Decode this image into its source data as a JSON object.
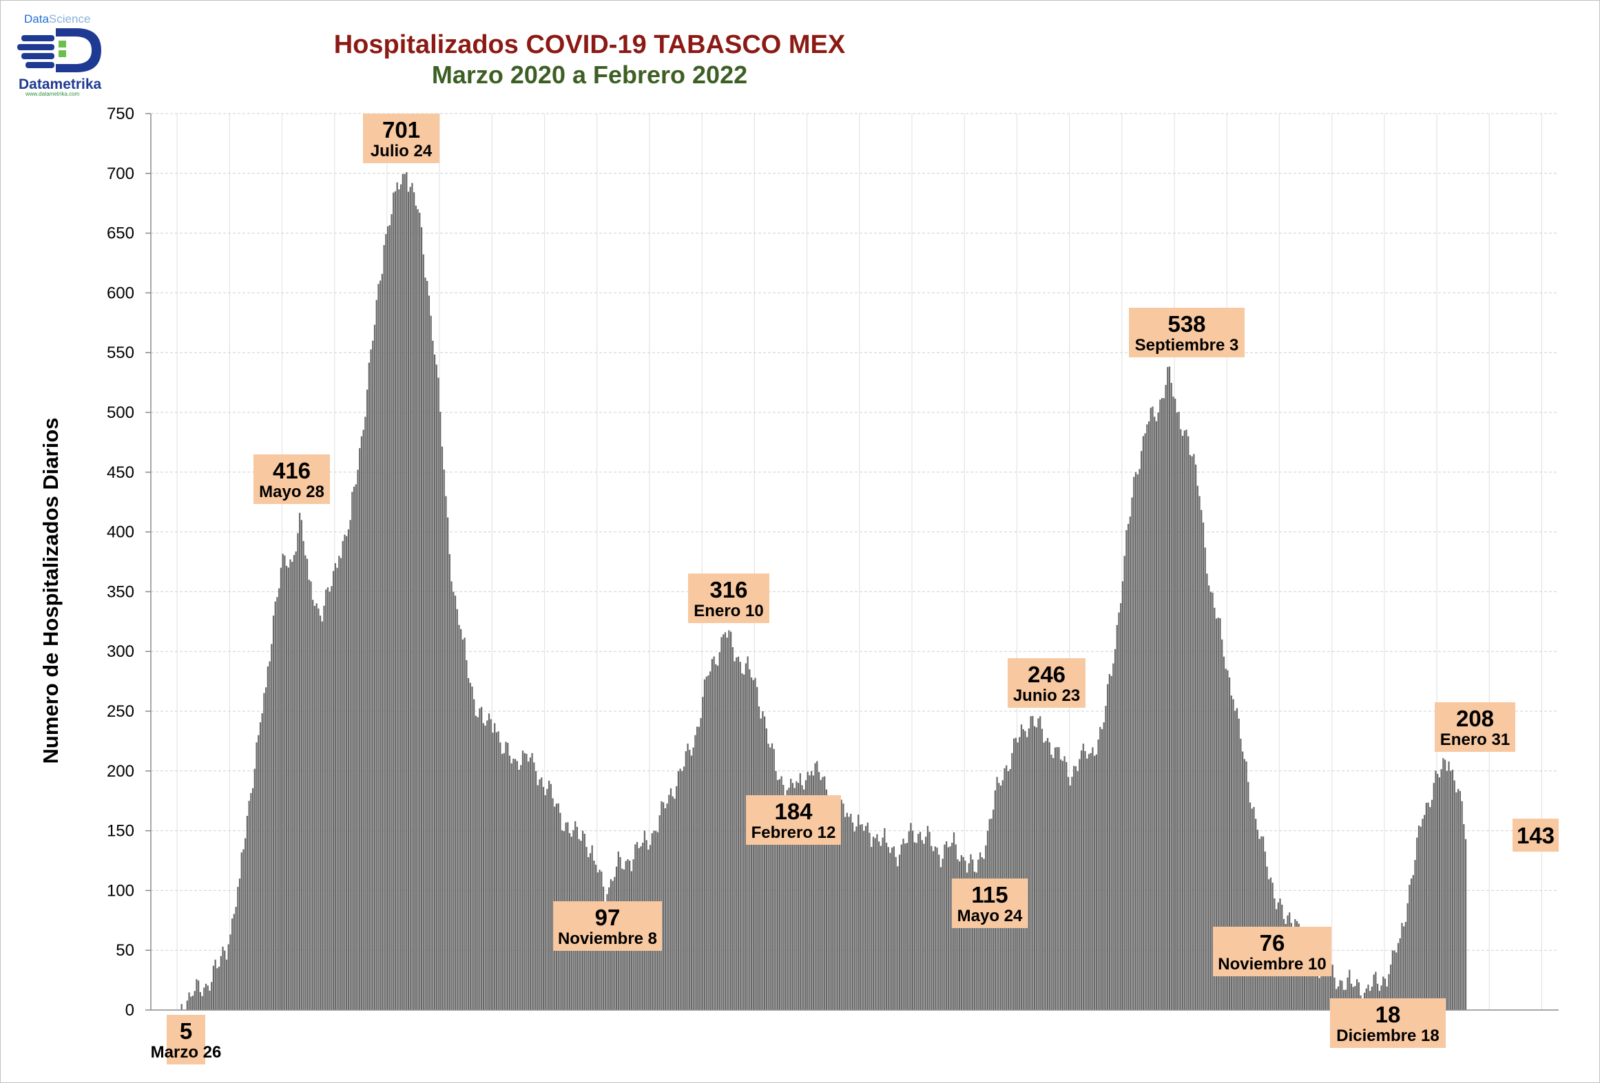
{
  "chart_data": {
    "type": "bar",
    "title": "Hospitalizados COVID-19 TABASCO MEX",
    "subtitle": "Marzo 2020 a Febrero 2022",
    "ylabel": "Numero de Hospitalizados Diarios",
    "xlabel": "",
    "ylim": [
      0,
      750
    ],
    "yticks": [
      0,
      50,
      100,
      150,
      200,
      250,
      300,
      350,
      400,
      450,
      500,
      550,
      600,
      650,
      700,
      750
    ],
    "grid": true,
    "colors": {
      "bar": "#686868",
      "title": "#8b1a14",
      "subtitle": "#3d5f24",
      "annotation_fill": "#f8c8a0"
    },
    "series": [
      {
        "knots": [
          [
            "2020-03-26",
            5
          ],
          [
            "2020-04-01",
            12
          ],
          [
            "2020-04-08",
            22
          ],
          [
            "2020-04-14",
            35
          ],
          [
            "2020-04-20",
            55
          ],
          [
            "2020-04-26",
            110
          ],
          [
            "2020-05-01",
            175
          ],
          [
            "2020-05-06",
            230
          ],
          [
            "2020-05-10",
            270
          ],
          [
            "2020-05-14",
            330
          ],
          [
            "2020-05-18",
            370
          ],
          [
            "2020-05-24",
            375
          ],
          [
            "2020-05-28",
            416
          ],
          [
            "2020-06-02",
            360
          ],
          [
            "2020-06-08",
            330
          ],
          [
            "2020-06-13",
            350
          ],
          [
            "2020-06-18",
            380
          ],
          [
            "2020-06-24",
            410
          ],
          [
            "2020-06-30",
            480
          ],
          [
            "2020-07-06",
            560
          ],
          [
            "2020-07-12",
            640
          ],
          [
            "2020-07-18",
            685
          ],
          [
            "2020-07-24",
            701
          ],
          [
            "2020-07-30",
            670
          ],
          [
            "2020-08-04",
            610
          ],
          [
            "2020-08-09",
            540
          ],
          [
            "2020-08-14",
            430
          ],
          [
            "2020-08-18",
            350
          ],
          [
            "2020-08-23",
            310
          ],
          [
            "2020-08-29",
            260
          ],
          [
            "2020-09-03",
            240
          ],
          [
            "2020-09-09",
            240
          ],
          [
            "2020-09-14",
            215
          ],
          [
            "2020-09-20",
            210
          ],
          [
            "2020-09-25",
            215
          ],
          [
            "2020-10-01",
            200
          ],
          [
            "2020-10-07",
            185
          ],
          [
            "2020-10-14",
            165
          ],
          [
            "2020-10-20",
            145
          ],
          [
            "2020-10-26",
            150
          ],
          [
            "2020-11-01",
            125
          ],
          [
            "2020-11-08",
            97
          ],
          [
            "2020-11-13",
            120
          ],
          [
            "2020-11-20",
            125
          ],
          [
            "2020-11-27",
            140
          ],
          [
            "2020-12-04",
            150
          ],
          [
            "2020-12-11",
            180
          ],
          [
            "2020-12-18",
            200
          ],
          [
            "2020-12-25",
            230
          ],
          [
            "2021-01-01",
            280
          ],
          [
            "2021-01-10",
            316
          ],
          [
            "2021-01-16",
            295
          ],
          [
            "2021-01-23",
            285
          ],
          [
            "2021-01-30",
            250
          ],
          [
            "2021-02-06",
            200
          ],
          [
            "2021-02-12",
            184
          ],
          [
            "2021-02-18",
            190
          ],
          [
            "2021-02-25",
            200
          ],
          [
            "2021-03-03",
            195
          ],
          [
            "2021-03-09",
            165
          ],
          [
            "2021-03-16",
            165
          ],
          [
            "2021-03-23",
            155
          ],
          [
            "2021-03-30",
            145
          ],
          [
            "2021-04-06",
            140
          ],
          [
            "2021-04-13",
            130
          ],
          [
            "2021-04-20",
            150
          ],
          [
            "2021-04-27",
            145
          ],
          [
            "2021-05-04",
            130
          ],
          [
            "2021-05-11",
            140
          ],
          [
            "2021-05-18",
            125
          ],
          [
            "2021-05-24",
            115
          ],
          [
            "2021-05-30",
            150
          ],
          [
            "2021-06-05",
            190
          ],
          [
            "2021-06-12",
            215
          ],
          [
            "2021-06-18",
            235
          ],
          [
            "2021-06-23",
            246
          ],
          [
            "2021-06-30",
            225
          ],
          [
            "2021-07-06",
            220
          ],
          [
            "2021-07-12",
            195
          ],
          [
            "2021-07-18",
            210
          ],
          [
            "2021-07-24",
            215
          ],
          [
            "2021-07-30",
            235
          ],
          [
            "2021-08-05",
            290
          ],
          [
            "2021-08-11",
            380
          ],
          [
            "2021-08-17",
            450
          ],
          [
            "2021-08-23",
            490
          ],
          [
            "2021-08-29",
            500
          ],
          [
            "2021-09-03",
            538
          ],
          [
            "2021-09-08",
            500
          ],
          [
            "2021-09-14",
            480
          ],
          [
            "2021-09-20",
            430
          ],
          [
            "2021-09-26",
            350
          ],
          [
            "2021-10-02",
            310
          ],
          [
            "2021-10-08",
            260
          ],
          [
            "2021-10-14",
            210
          ],
          [
            "2021-10-20",
            160
          ],
          [
            "2021-10-26",
            120
          ],
          [
            "2021-11-01",
            90
          ],
          [
            "2021-11-05",
            72
          ],
          [
            "2021-11-10",
            76
          ],
          [
            "2021-11-16",
            60
          ],
          [
            "2021-11-22",
            40
          ],
          [
            "2021-11-28",
            30
          ],
          [
            "2021-12-04",
            25
          ],
          [
            "2021-12-10",
            22
          ],
          [
            "2021-12-18",
            18
          ],
          [
            "2021-12-24",
            22
          ],
          [
            "2021-12-30",
            30
          ],
          [
            "2022-01-05",
            60
          ],
          [
            "2022-01-11",
            110
          ],
          [
            "2022-01-17",
            160
          ],
          [
            "2022-01-23",
            190
          ],
          [
            "2022-01-31",
            208
          ],
          [
            "2022-02-05",
            185
          ],
          [
            "2022-02-09",
            143
          ]
        ]
      }
    ],
    "annotations": [
      {
        "value": "5",
        "date_label": "Marzo 26",
        "date": "2020-03-26"
      },
      {
        "value": "416",
        "date_label": "Mayo 28",
        "date": "2020-05-28"
      },
      {
        "value": "701",
        "date_label": "Julio 24",
        "date": "2020-07-24"
      },
      {
        "value": "97",
        "date_label": "Noviembre 8",
        "date": "2020-11-08"
      },
      {
        "value": "316",
        "date_label": "Enero 10",
        "date": "2021-01-10"
      },
      {
        "value": "184",
        "date_label": "Febrero 12",
        "date": "2021-02-12"
      },
      {
        "value": "115",
        "date_label": "Mayo 24",
        "date": "2021-05-24"
      },
      {
        "value": "246",
        "date_label": "Junio 23",
        "date": "2021-06-23"
      },
      {
        "value": "538",
        "date_label": "Septiembre 3",
        "date": "2021-09-03"
      },
      {
        "value": "76",
        "date_label": "Noviembre 10",
        "date": "2021-11-10"
      },
      {
        "value": "18",
        "date_label": "Diciembre 18",
        "date": "2021-12-18"
      },
      {
        "value": "208",
        "date_label": "Enero 31",
        "date": "2022-01-31"
      },
      {
        "value": "143",
        "date_label": "",
        "date": "2022-02-09"
      }
    ]
  },
  "logo": {
    "top": "DataScience",
    "top_part1": "Data",
    "top_part2": "Science",
    "name": "Datametrika",
    "url": "www.datametrika.com"
  }
}
